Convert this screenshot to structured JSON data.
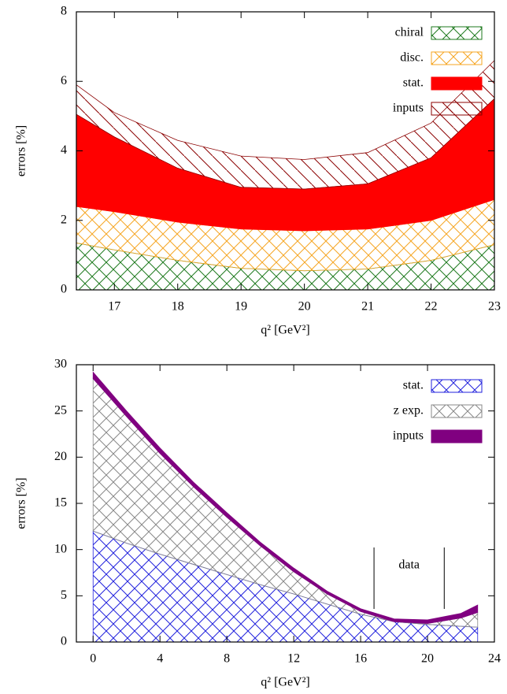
{
  "chart_data": [
    {
      "type": "stacked-area",
      "x": [
        16.4,
        17,
        18,
        19,
        20,
        21,
        22,
        23
      ],
      "series": [
        {
          "name": "chiral",
          "color": "#1e7a1e",
          "pattern": "cross",
          "values": [
            1.35,
            1.15,
            0.85,
            0.62,
            0.55,
            0.6,
            0.85,
            1.3
          ]
        },
        {
          "name": "disc.",
          "color": "#f5a623",
          "pattern": "cross",
          "values": [
            1.05,
            1.1,
            1.1,
            1.13,
            1.15,
            1.15,
            1.15,
            1.3
          ]
        },
        {
          "name": "stat.",
          "color": "#ff0000",
          "pattern": "solid",
          "values": [
            2.65,
            2.15,
            1.55,
            1.2,
            1.2,
            1.3,
            1.8,
            2.9
          ]
        },
        {
          "name": "inputs",
          "color": "#8b0000",
          "pattern": "diagonal",
          "values": [
            0.85,
            0.7,
            0.8,
            0.9,
            0.85,
            0.9,
            1.0,
            1.1
          ]
        }
      ],
      "xlabel": "q² [GeV²]",
      "ylabel": "errors [%]",
      "xlim": [
        16.4,
        23
      ],
      "xticks": [
        17,
        18,
        19,
        20,
        21,
        22,
        23
      ],
      "ylim": [
        0,
        8
      ],
      "yticks": [
        0,
        2,
        4,
        6,
        8
      ],
      "legend": "top-right"
    },
    {
      "type": "stacked-area",
      "x": [
        0,
        2,
        4,
        6,
        8,
        10,
        12,
        14,
        16,
        18,
        20,
        22,
        23
      ],
      "series": [
        {
          "name": "stat.",
          "color": "#2222dd",
          "pattern": "cross",
          "values": [
            12,
            10.7,
            9.5,
            8.4,
            7.3,
            6.2,
            5.2,
            4.1,
            3.0,
            2.2,
            1.9,
            1.7,
            1.6
          ]
        },
        {
          "name": "z exp.",
          "color": "#888888",
          "pattern": "cross",
          "values": [
            16.5,
            13.7,
            10.9,
            8.4,
            6.2,
            4.2,
            2.4,
            1.1,
            0.3,
            0,
            0.1,
            0.9,
            1.6
          ]
        },
        {
          "name": "inputs",
          "color": "#800080",
          "pattern": "solid",
          "values": [
            0.7,
            0.6,
            0.6,
            0.5,
            0.5,
            0.4,
            0.4,
            0.3,
            0.3,
            0.3,
            0.4,
            0.5,
            0.8
          ]
        }
      ],
      "xlabel": "q² [GeV²]",
      "ylabel": "errors [%]",
      "xlim": [
        -1,
        24
      ],
      "xticks": [
        0,
        4,
        8,
        12,
        16,
        20,
        24
      ],
      "ylim": [
        0,
        30
      ],
      "yticks": [
        0,
        5,
        10,
        15,
        20,
        25,
        30
      ],
      "legend": "top-right",
      "annotations": [
        {
          "text": "data",
          "span": [
            16.8,
            21
          ]
        }
      ]
    }
  ]
}
